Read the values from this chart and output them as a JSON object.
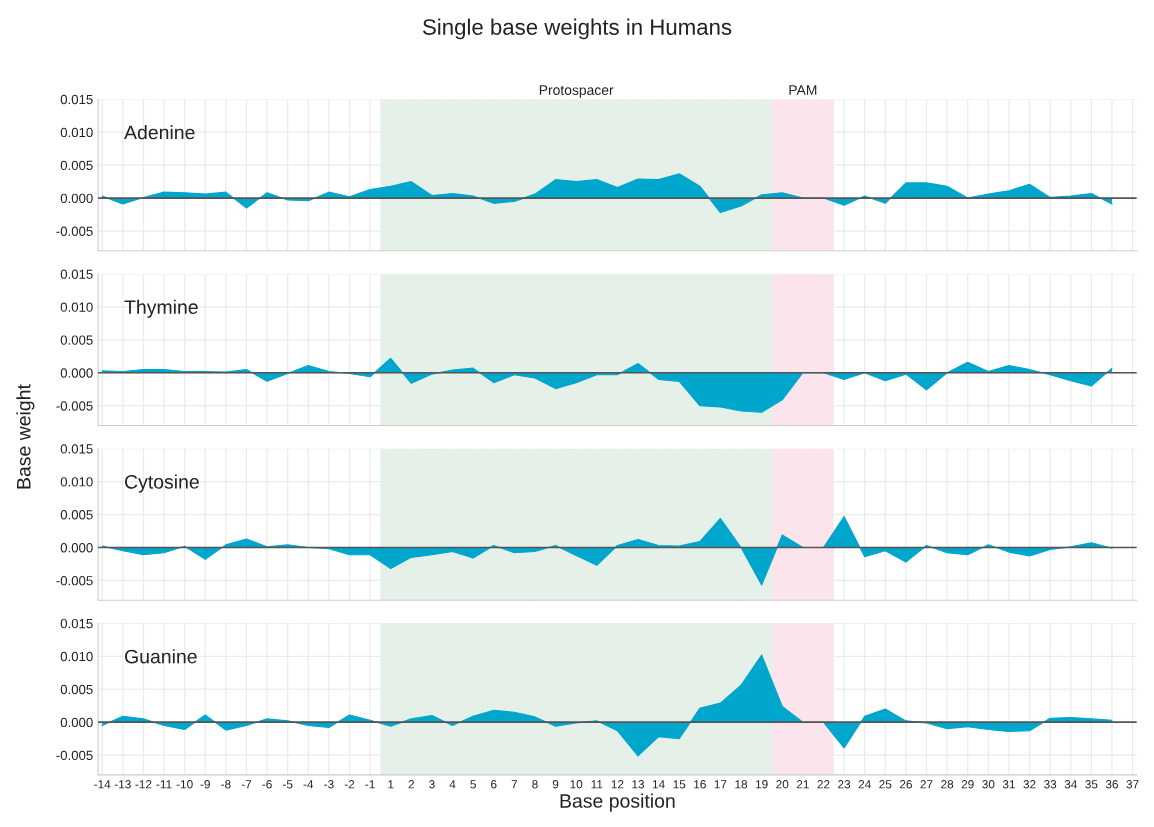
{
  "chart_data": [
    {
      "type": "area",
      "title": "Single base weights in Humans",
      "annotations": [
        "Adenine"
      ],
      "categories": [
        "-14",
        "-13",
        "-12",
        "-11",
        "-10",
        "-9",
        "-8",
        "-7",
        "-6",
        "-5",
        "-4",
        "-3",
        "-2",
        "-1",
        "1",
        "2",
        "3",
        "4",
        "5",
        "6",
        "7",
        "8",
        "9",
        "10",
        "11",
        "12",
        "13",
        "14",
        "15",
        "16",
        "17",
        "18",
        "19",
        "20",
        "21",
        "22",
        "23",
        "24",
        "25",
        "26",
        "27",
        "28",
        "29",
        "30",
        "31",
        "32",
        "33",
        "34",
        "35",
        "36",
        "37"
      ],
      "color": "#00a6cc",
      "values": [
        0.0003,
        -0.0009,
        0.0001,
        0.0009,
        0.0008,
        0.0006,
        0.0009,
        -0.0015,
        0.0008,
        -0.0003,
        -0.0004,
        0.0009,
        0.0002,
        0.0013,
        0.0018,
        0.0025,
        0.0004,
        0.0007,
        0.0003,
        -0.0008,
        -0.0005,
        0.0006,
        0.0028,
        0.0025,
        0.0028,
        0.0016,
        0.0029,
        0.0028,
        0.0037,
        0.0018,
        -0.0022,
        -0.0012,
        0.0005,
        0.0008,
        0.0,
        0.0,
        -0.0011,
        0.0003,
        -0.0008,
        0.0023,
        0.0023,
        0.0018,
        0.0,
        0.0006,
        0.0011,
        0.0021,
        0.0001,
        0.0003,
        0.0007,
        -0.0009,
        null
      ],
      "ylim": [
        -0.008,
        0.015
      ],
      "yticks": [
        {
          "value": -0.005,
          "label": "-0.005"
        },
        {
          "value": 0,
          "label": "0.000"
        },
        {
          "value": 0.005,
          "label": "0.005"
        },
        {
          "value": 0.01,
          "label": "0.010"
        },
        {
          "value": 0.015,
          "label": "0.015"
        }
      ],
      "bands": [
        {
          "axis": "x",
          "from": "1",
          "to": "19",
          "label": "Protospacer",
          "color": "#e5f0e8"
        },
        {
          "axis": "x",
          "from": "20",
          "to": "22",
          "label": "PAM",
          "color": "#fbe4ec"
        }
      ],
      "ref_lines": [
        {
          "axis": "y",
          "value": 0,
          "color": "#555555"
        }
      ],
      "grid": true,
      "tick_labels": "y"
    },
    {
      "type": "area",
      "annotations": [
        "Thymine"
      ],
      "ylabel": "Base weight",
      "categories": [
        "-14",
        "-13",
        "-12",
        "-11",
        "-10",
        "-9",
        "-8",
        "-7",
        "-6",
        "-5",
        "-4",
        "-3",
        "-2",
        "-1",
        "1",
        "2",
        "3",
        "4",
        "5",
        "6",
        "7",
        "8",
        "9",
        "10",
        "11",
        "12",
        "13",
        "14",
        "15",
        "16",
        "17",
        "18",
        "19",
        "20",
        "21",
        "22",
        "23",
        "24",
        "25",
        "26",
        "27",
        "28",
        "29",
        "30",
        "31",
        "32",
        "33",
        "34",
        "35",
        "36",
        "37"
      ],
      "color": "#00a6cc",
      "values": [
        0.0003,
        0.0002,
        0.0005,
        0.0005,
        0.0002,
        0.0002,
        0.0001,
        0.0005,
        -0.0013,
        -0.0001,
        0.0011,
        0.0002,
        -0.0001,
        -0.0006,
        0.0022,
        -0.0016,
        -0.0002,
        0.0004,
        0.0007,
        -0.0015,
        -0.0003,
        -0.0008,
        -0.0024,
        -0.0015,
        -0.0003,
        -0.0003,
        0.0014,
        -0.001,
        -0.0013,
        -0.005,
        -0.0052,
        -0.0058,
        -0.006,
        -0.0041,
        0.0,
        0.0,
        -0.001,
        0.0,
        -0.0012,
        -0.0002,
        -0.0026,
        0.0,
        0.0016,
        0.0002,
        0.0011,
        0.0005,
        -0.0003,
        -0.0012,
        -0.002,
        0.0007,
        null
      ],
      "ylim": [
        -0.008,
        0.015
      ],
      "yticks": [
        {
          "value": -0.005,
          "label": "-0.005"
        },
        {
          "value": 0,
          "label": "0.000"
        },
        {
          "value": 0.005,
          "label": "0.005"
        },
        {
          "value": 0.01,
          "label": "0.010"
        },
        {
          "value": 0.015,
          "label": "0.015"
        }
      ],
      "bands": [
        {
          "axis": "x",
          "from": "1",
          "to": "19",
          "color": "#e5f0e8"
        },
        {
          "axis": "x",
          "from": "20",
          "to": "22",
          "color": "#fbe4ec"
        }
      ],
      "ref_lines": [
        {
          "axis": "y",
          "value": 0,
          "color": "#555555"
        }
      ],
      "grid": true,
      "tick_labels": "y"
    },
    {
      "type": "area",
      "annotations": [
        "Cytosine"
      ],
      "categories": [
        "-14",
        "-13",
        "-12",
        "-11",
        "-10",
        "-9",
        "-8",
        "-7",
        "-6",
        "-5",
        "-4",
        "-3",
        "-2",
        "-1",
        "1",
        "2",
        "3",
        "4",
        "5",
        "6",
        "7",
        "8",
        "9",
        "10",
        "11",
        "12",
        "13",
        "14",
        "15",
        "16",
        "17",
        "18",
        "19",
        "20",
        "21",
        "22",
        "23",
        "24",
        "25",
        "26",
        "27",
        "28",
        "29",
        "30",
        "31",
        "32",
        "33",
        "34",
        "35",
        "36",
        "37"
      ],
      "color": "#00a6cc",
      "values": [
        0.0002,
        -0.0005,
        -0.0011,
        -0.0008,
        0.0002,
        -0.0018,
        0.0004,
        0.0013,
        0.0001,
        0.0004,
        0.0,
        -0.0002,
        -0.0011,
        -0.0011,
        -0.0032,
        -0.0015,
        -0.0011,
        -0.0006,
        -0.0016,
        0.0003,
        -0.0008,
        -0.0006,
        0.0003,
        -0.0012,
        -0.0027,
        0.0003,
        0.0012,
        0.0003,
        0.0002,
        0.0009,
        0.0044,
        0.0,
        -0.0057,
        0.0019,
        0.0,
        0.0,
        0.0047,
        -0.0014,
        -0.0005,
        -0.0022,
        0.0003,
        -0.0008,
        -0.0011,
        0.0004,
        -0.0007,
        -0.0013,
        -0.0003,
        0.0001,
        0.0007,
        -0.0001,
        null
      ],
      "ylim": [
        -0.008,
        0.015
      ],
      "yticks": [
        {
          "value": -0.005,
          "label": "-0.005"
        },
        {
          "value": 0,
          "label": "0.000"
        },
        {
          "value": 0.005,
          "label": "0.005"
        },
        {
          "value": 0.01,
          "label": "0.010"
        },
        {
          "value": 0.015,
          "label": "0.015"
        }
      ],
      "bands": [
        {
          "axis": "x",
          "from": "1",
          "to": "19",
          "color": "#e5f0e8"
        },
        {
          "axis": "x",
          "from": "20",
          "to": "22",
          "color": "#fbe4ec"
        }
      ],
      "ref_lines": [
        {
          "axis": "y",
          "value": 0,
          "color": "#555555"
        }
      ],
      "grid": true,
      "tick_labels": "y"
    },
    {
      "type": "area",
      "annotations": [
        "Guanine"
      ],
      "xlabel": "Base position",
      "categories": [
        "-14",
        "-13",
        "-12",
        "-11",
        "-10",
        "-9",
        "-8",
        "-7",
        "-6",
        "-5",
        "-4",
        "-3",
        "-2",
        "-1",
        "1",
        "2",
        "3",
        "4",
        "5",
        "6",
        "7",
        "8",
        "9",
        "10",
        "11",
        "12",
        "13",
        "14",
        "15",
        "16",
        "17",
        "18",
        "19",
        "20",
        "21",
        "22",
        "23",
        "24",
        "25",
        "26",
        "27",
        "28",
        "29",
        "30",
        "31",
        "32",
        "33",
        "34",
        "35",
        "36",
        "37"
      ],
      "color": "#00a6cc",
      "values": [
        -0.0005,
        0.0009,
        0.0005,
        -0.0005,
        -0.0011,
        0.0011,
        -0.0012,
        -0.0005,
        0.0005,
        0.0002,
        -0.0005,
        -0.0008,
        0.0011,
        0.0003,
        -0.0006,
        0.0005,
        0.001,
        -0.0005,
        0.0009,
        0.0018,
        0.0015,
        0.0008,
        -0.0006,
        -0.0001,
        0.0002,
        -0.0013,
        -0.0051,
        -0.0022,
        -0.0025,
        0.0021,
        0.0029,
        0.0056,
        0.0102,
        0.0024,
        0.0,
        0.0,
        -0.0039,
        0.0009,
        0.002,
        0.0002,
        -0.0001,
        -0.001,
        -0.0007,
        -0.0011,
        -0.0014,
        -0.0013,
        0.0006,
        0.0007,
        0.0005,
        0.0003,
        null
      ],
      "ylim": [
        -0.008,
        0.015
      ],
      "yticks": [
        {
          "value": -0.005,
          "label": "-0.005"
        },
        {
          "value": 0,
          "label": "0.000"
        },
        {
          "value": 0.005,
          "label": "0.005"
        },
        {
          "value": 0.01,
          "label": "0.010"
        },
        {
          "value": 0.015,
          "label": "0.015"
        }
      ],
      "bands": [
        {
          "axis": "x",
          "from": "1",
          "to": "19",
          "color": "#e5f0e8"
        },
        {
          "axis": "x",
          "from": "20",
          "to": "22",
          "color": "#fbe4ec"
        }
      ],
      "ref_lines": [
        {
          "axis": "y",
          "value": 0,
          "color": "#555555"
        }
      ],
      "grid": true
    }
  ]
}
